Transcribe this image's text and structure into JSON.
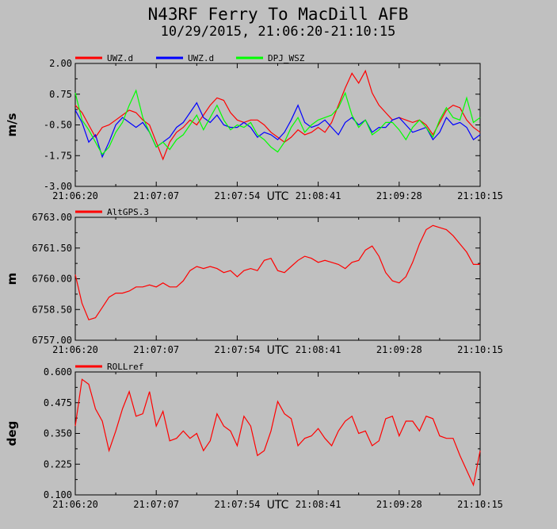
{
  "header": {
    "title": "N43RF Ferry To MacDill AFB",
    "subtitle": "10/29/2015, 21:06:20-21:10:15"
  },
  "colors": {
    "background": "#c0c0c0",
    "red": "#ff0000",
    "blue": "#0000ff",
    "green": "#00ff00"
  },
  "chart_data": [
    {
      "type": "line",
      "ylabel": "m/s",
      "xlabel": "UTC",
      "ylim": [
        -3.0,
        2.0
      ],
      "yticks": [
        "2.00",
        "0.75",
        "-0.50",
        "-1.75",
        "-3.00"
      ],
      "xticks": [
        "21:06:20",
        "21:07:07",
        "21:07:54",
        "21:08:41",
        "21:09:28",
        "21:10:15"
      ],
      "legend_position": "top",
      "series": [
        {
          "name": "UWZ.d",
          "color": "#ff0000",
          "values": [
            0.3,
            0.0,
            -0.5,
            -1.0,
            -0.6,
            -0.5,
            -0.3,
            -0.1,
            0.1,
            0.0,
            -0.3,
            -0.5,
            -1.2,
            -1.9,
            -1.2,
            -0.8,
            -0.6,
            -0.3,
            -0.5,
            -0.1,
            0.3,
            0.6,
            0.5,
            0.0,
            -0.3,
            -0.4,
            -0.3,
            -0.3,
            -0.5,
            -0.8,
            -1.0,
            -1.2,
            -1.0,
            -0.7,
            -0.9,
            -0.8,
            -0.6,
            -0.8,
            -0.4,
            0.3,
            1.0,
            1.6,
            1.2,
            1.7,
            0.8,
            0.3,
            0.0,
            -0.3,
            -0.2,
            -0.3,
            -0.4,
            -0.3,
            -0.5,
            -0.9,
            -0.4,
            0.1,
            0.3,
            0.2,
            -0.3,
            -0.6,
            -0.8
          ]
        },
        {
          "name": "UWZ.d",
          "color": "#0000ff",
          "values": [
            0.1,
            -0.4,
            -1.2,
            -0.9,
            -1.8,
            -1.2,
            -0.5,
            -0.2,
            -0.4,
            -0.6,
            -0.4,
            -0.8,
            -1.4,
            -1.2,
            -1.0,
            -0.6,
            -0.4,
            0.0,
            0.4,
            -0.2,
            -0.4,
            -0.1,
            -0.5,
            -0.6,
            -0.6,
            -0.4,
            -0.6,
            -1.0,
            -0.8,
            -0.9,
            -1.1,
            -0.8,
            -0.3,
            0.3,
            -0.4,
            -0.6,
            -0.5,
            -0.3,
            -0.6,
            -0.9,
            -0.4,
            -0.2,
            -0.5,
            -0.3,
            -0.8,
            -0.6,
            -0.6,
            -0.3,
            -0.2,
            -0.5,
            -0.8,
            -0.7,
            -0.6,
            -1.1,
            -0.8,
            -0.2,
            -0.5,
            -0.4,
            -0.6,
            -1.1,
            -0.9
          ]
        },
        {
          "name": "DPJ_WSZ",
          "color": "#00ff00",
          "values": [
            0.8,
            -0.3,
            -0.7,
            -1.2,
            -1.7,
            -1.4,
            -0.8,
            -0.4,
            0.3,
            0.9,
            -0.2,
            -0.8,
            -1.4,
            -1.2,
            -1.5,
            -1.1,
            -0.9,
            -0.5,
            -0.1,
            -0.7,
            -0.2,
            0.3,
            -0.3,
            -0.7,
            -0.5,
            -0.6,
            -0.4,
            -0.9,
            -1.1,
            -1.4,
            -1.6,
            -1.2,
            -0.6,
            -0.2,
            -0.8,
            -0.5,
            -0.3,
            -0.2,
            -0.1,
            0.2,
            0.8,
            -0.1,
            -0.6,
            -0.3,
            -0.9,
            -0.7,
            -0.4,
            -0.4,
            -0.7,
            -1.1,
            -0.6,
            -0.3,
            -0.6,
            -1.0,
            -0.3,
            0.2,
            -0.2,
            -0.3,
            0.6,
            -0.4,
            -0.2
          ]
        }
      ]
    },
    {
      "type": "line",
      "ylabel": "m",
      "xlabel": "UTC",
      "ylim": [
        6757.0,
        6763.0
      ],
      "yticks": [
        "6763.00",
        "6761.50",
        "6760.00",
        "6758.50",
        "6757.00"
      ],
      "xticks": [
        "21:06:20",
        "21:07:07",
        "21:07:54",
        "21:08:41",
        "21:09:28",
        "21:10:15"
      ],
      "legend_position": "top",
      "series": [
        {
          "name": "AltGPS.3",
          "color": "#ff0000",
          "values": [
            6760.2,
            6758.8,
            6758.0,
            6758.1,
            6758.6,
            6759.1,
            6759.3,
            6759.3,
            6759.4,
            6759.6,
            6759.6,
            6759.7,
            6759.6,
            6759.8,
            6759.6,
            6759.6,
            6759.9,
            6760.4,
            6760.6,
            6760.5,
            6760.6,
            6760.5,
            6760.3,
            6760.4,
            6760.1,
            6760.4,
            6760.5,
            6760.4,
            6760.9,
            6761.0,
            6760.4,
            6760.3,
            6760.6,
            6760.9,
            6761.1,
            6761.0,
            6760.8,
            6760.9,
            6760.8,
            6760.7,
            6760.5,
            6760.8,
            6760.9,
            6761.4,
            6761.6,
            6761.1,
            6760.3,
            6759.9,
            6759.8,
            6760.1,
            6760.8,
            6761.7,
            6762.4,
            6762.6,
            6762.5,
            6762.4,
            6762.1,
            6761.7,
            6761.3,
            6760.7,
            6760.7
          ]
        }
      ]
    },
    {
      "type": "line",
      "ylabel": "deg",
      "xlabel": "UTC",
      "ylim": [
        0.1,
        0.6
      ],
      "yticks": [
        "0.600",
        "0.475",
        "0.350",
        "0.225",
        "0.100"
      ],
      "xticks": [
        "21:06:20",
        "21:07:07",
        "21:07:54",
        "21:08:41",
        "21:09:28",
        "21:10:15"
      ],
      "legend_position": "top",
      "series": [
        {
          "name": "ROLLref",
          "color": "#ff0000",
          "values": [
            0.38,
            0.57,
            0.55,
            0.45,
            0.4,
            0.28,
            0.36,
            0.45,
            0.52,
            0.42,
            0.43,
            0.52,
            0.38,
            0.44,
            0.32,
            0.33,
            0.36,
            0.33,
            0.35,
            0.28,
            0.32,
            0.43,
            0.38,
            0.36,
            0.3,
            0.42,
            0.38,
            0.26,
            0.28,
            0.36,
            0.48,
            0.43,
            0.41,
            0.3,
            0.33,
            0.34,
            0.37,
            0.33,
            0.3,
            0.36,
            0.4,
            0.42,
            0.35,
            0.36,
            0.3,
            0.32,
            0.41,
            0.42,
            0.34,
            0.4,
            0.4,
            0.36,
            0.42,
            0.41,
            0.34,
            0.33,
            0.33,
            0.26,
            0.2,
            0.14,
            0.28
          ]
        }
      ]
    }
  ]
}
